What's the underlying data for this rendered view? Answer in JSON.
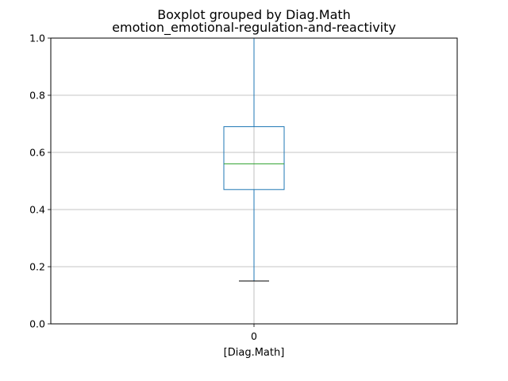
{
  "chart_data": {
    "type": "box",
    "title": "Boxplot grouped by Diag.Math",
    "subtitle": "emotion_emotional-regulation-and-reactivity",
    "xlabel": "[Diag.Math]",
    "ylabel": "",
    "categories": [
      "0"
    ],
    "ylim": [
      0,
      1
    ],
    "yticks": [
      "0.0",
      "0.2",
      "0.4",
      "0.6",
      "0.8",
      "1.0"
    ],
    "grid": true,
    "boxes": [
      {
        "category": "0",
        "whisker_low": 0.15,
        "q1": 0.47,
        "median": 0.56,
        "q3": 0.69,
        "whisker_high": 1.0
      }
    ],
    "colors": {
      "box": "#1f77b4",
      "median": "#2ca02c",
      "cap": "#000000",
      "grid": "#b0b0b0"
    }
  }
}
